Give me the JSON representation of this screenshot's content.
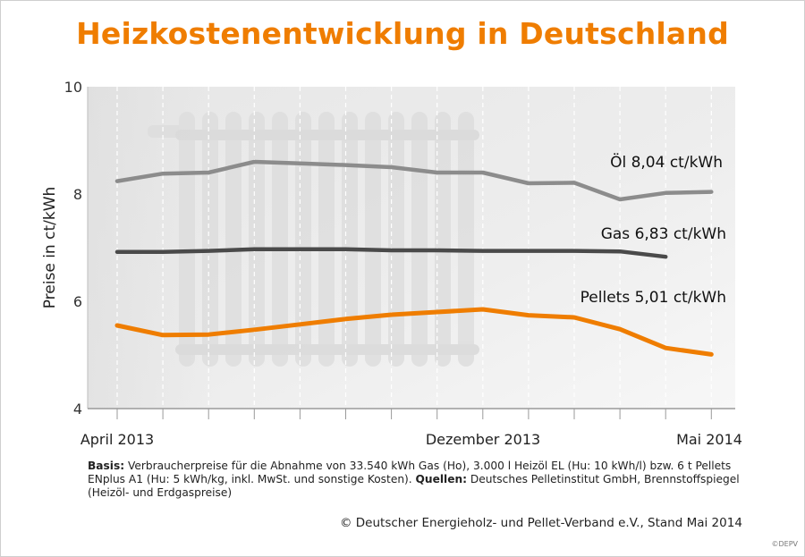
{
  "title": "Heizkostenentwicklung in Deutschland",
  "chart_data": {
    "type": "line",
    "ylabel": "Preise in ct/kWh",
    "ylim": [
      4,
      10
    ],
    "yticks": [
      "10",
      "8",
      "6",
      "4"
    ],
    "x_labels": [
      "April 2013",
      "Dezember 2013",
      "Mai 2014"
    ],
    "grid": "vertical dashed lines at each month",
    "series": [
      {
        "name": "Öl",
        "label": "Öl  8,04 ct/kWh",
        "color": "#8c8c8c",
        "x": [
          "Apr 2013",
          "May 2013",
          "Jun 2013",
          "Jul 2013",
          "Aug 2013",
          "Sep 2013",
          "Oct 2013",
          "Nov 2013",
          "Dec 2013",
          "Jan 2014",
          "Feb 2014",
          "Mar 2014",
          "Apr 2014",
          "May 2014"
        ],
        "values": [
          8.24,
          8.38,
          8.4,
          8.6,
          8.57,
          8.54,
          8.5,
          8.4,
          8.4,
          8.2,
          8.21,
          7.9,
          8.02,
          8.04
        ]
      },
      {
        "name": "Gas",
        "label": "Gas  6,83 ct/kWh",
        "color": "#4a4a4a",
        "x": [
          "Apr 2013",
          "May 2013",
          "Jun 2013",
          "Jul 2013",
          "Aug 2013",
          "Sep 2013",
          "Oct 2013",
          "Nov 2013",
          "Dec 2013",
          "Jan 2014",
          "Feb 2014",
          "Mar 2014",
          "Apr 2014"
        ],
        "values": [
          6.92,
          6.92,
          6.94,
          6.97,
          6.97,
          6.97,
          6.95,
          6.95,
          6.94,
          6.94,
          6.94,
          6.93,
          6.83
        ]
      },
      {
        "name": "Pellets",
        "label": "Pellets  5,01 ct/kWh",
        "color": "#ef7d00",
        "x": [
          "Apr 2013",
          "May 2013",
          "Jun 2013",
          "Jul 2013",
          "Aug 2013",
          "Sep 2013",
          "Oct 2013",
          "Nov 2013",
          "Dec 2013",
          "Jan 2014",
          "Feb 2014",
          "Mar 2014",
          "Apr 2014",
          "May 2014"
        ],
        "values": [
          5.55,
          5.37,
          5.38,
          5.47,
          5.57,
          5.67,
          5.75,
          5.8,
          5.85,
          5.74,
          5.7,
          5.48,
          5.13,
          5.01
        ]
      }
    ]
  },
  "footnote": {
    "basis_label": "Basis:",
    "basis_text": " Verbraucherpreise für die Abnahme von 33.540 kWh Gas (Ho), 3.000 l Heizöl EL (Hu: 10 kWh/l) bzw. 6 t Pellets ENplus A1 (Hu: 5 kWh/kg, inkl. MwSt. und sonstige Kosten).",
    "sources_label": "Quellen:",
    "sources_text": " Deutsches Pelletinstitut GmbH, Brennstoffspiegel (Heizöl- und Erdgaspreise)"
  },
  "copyright": "© Deutscher Energieholz- und Pellet-Verband e.V., Stand Mai 2014",
  "logo": "©DEPV"
}
